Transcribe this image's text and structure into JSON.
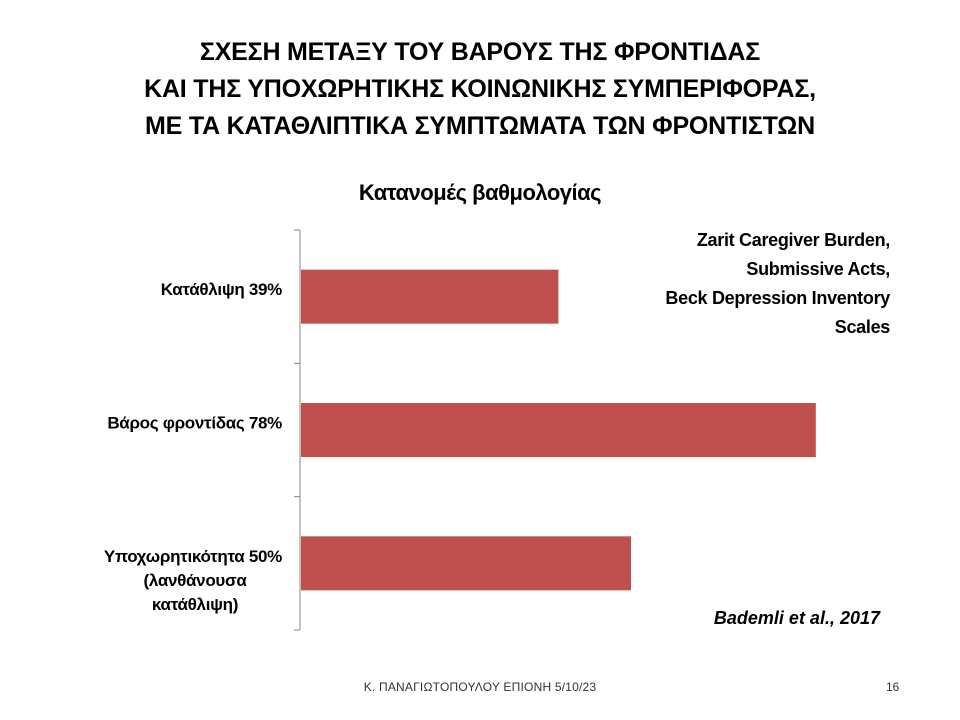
{
  "slide": {
    "title_lines": [
      "ΣΧΕΣΗ ΜΕΤΑΞΥ ΤΟΥ ΒΑΡΟΥΣ ΤΗΣ ΦΡΟΝΤΙΔΑΣ",
      "ΚΑΙ ΤΗΣ ΥΠΟΧΩΡΗΤΙΚΗΣ ΚΟΙΝΩΝΙΚΗΣ ΣΥΜΠΕΡΙΦΟΡΑΣ,",
      "ΜΕ ΤΑ ΚΑΤΑΘΛΙΠΤΙΚΑ ΣΥΜΠΤΩΜΑΤΑ ΤΩΝ ΦΡΟΝΤΙΣΤΩΝ"
    ],
    "note_lines": [
      "Zarit Caregiver Burden,",
      "Submissive Acts,",
      "Beck Depression Inventory",
      "Scales"
    ],
    "citation": "Bademli et al., 2017",
    "footer": "Κ. ΠΑΝΑΓΙΩΤΟΠΟΥΛΟΥ ΕΠΙΟΝΗ 5/10/23",
    "page_number": "16"
  },
  "chart_data": {
    "type": "bar",
    "orientation": "horizontal",
    "title": "Κατανομές βαθμολογίας",
    "categories": [
      [
        "Κατάθλιψη 39%"
      ],
      [
        "Βάρος φροντίδας 78%"
      ],
      [
        "Υποχωρητικότητα 50%",
        "(λανθάνουσα",
        "κατάθλιψη)"
      ]
    ],
    "values": [
      39,
      78,
      50
    ],
    "xlim": [
      0,
      80
    ],
    "grid": false,
    "legend": "none",
    "bar_color": "#c0504d",
    "axis_color": "#868686"
  }
}
